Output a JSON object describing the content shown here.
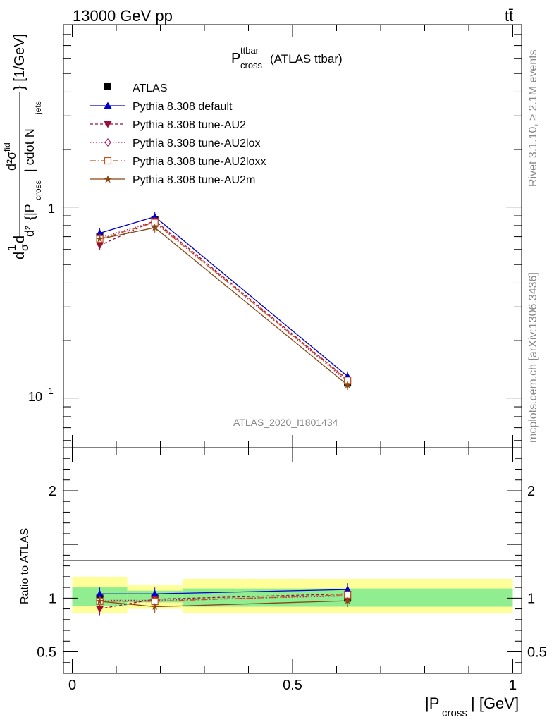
{
  "header": {
    "process_label": "13000 GeV pp",
    "final_state": "tt̄"
  },
  "side_labels": {
    "rivet": "Rivet 3.1.10, ≥ 2.1M events",
    "source": "mcplots.cern.ch [arXiv:1306.3436]"
  },
  "analysis_id": "ATLAS_2020_I1801434",
  "chart_data": [
    {
      "type": "line",
      "title_main": "P",
      "title_sup": "ttbar",
      "title_sub": "cross",
      "title_suffix": "(ATLAS ttbar)",
      "ylabel_parts": {
        "frac_num": "d",
        "one": "1",
        "sigma": "σ",
        "d": "d",
        "inner_num": "d²σ",
        "inner_num_sup": "fid",
        "inner_den_d2": "d²",
        "inner_den_open": "{|P",
        "inner_den_sub": "cross",
        "inner_den_close": "| cdot N",
        "inner_den_sub2": "jets",
        "tail": "} [1/GeV]"
      },
      "yscale": "log",
      "ylim": [
        0.055,
        9
      ],
      "xlim": [
        -0.02,
        1.02
      ],
      "ytick_labels": {
        "one": "1",
        "tenth_base": "10",
        "tenth_exp": "−1"
      },
      "legend_position": "top-left",
      "x": [
        0.0625,
        0.1875,
        0.625
      ],
      "series": [
        {
          "name": "ATLAS",
          "color": "#000000",
          "marker": "square",
          "style": "none",
          "values": [
            0.7,
            0.86,
            0.12
          ]
        },
        {
          "name": "Pythia 8.308 default",
          "color": "#0000cc",
          "marker": "triangle-up",
          "style": "solid",
          "values": [
            0.73,
            0.89,
            0.13
          ]
        },
        {
          "name": "Pythia 8.308 tune-AU2",
          "color": "#9c0e3a",
          "marker": "triangle-down",
          "style": "dashed",
          "values": [
            0.63,
            0.85,
            0.125
          ]
        },
        {
          "name": "Pythia 8.308 tune-AU2lox",
          "color": "#b01560",
          "marker": "diamond",
          "style": "dotted",
          "values": [
            0.69,
            0.84,
            0.122
          ]
        },
        {
          "name": "Pythia 8.308 tune-AU2loxx",
          "color": "#c8501e",
          "marker": "square-open",
          "style": "dashdot",
          "values": [
            0.68,
            0.83,
            0.124
          ]
        },
        {
          "name": "Pythia 8.308 tune-AU2m",
          "color": "#8b4513",
          "marker": "star",
          "style": "solid",
          "values": [
            0.68,
            0.78,
            0.117
          ]
        }
      ]
    },
    {
      "type": "line",
      "ylabel": "Ratio to ATLAS",
      "xlabel_main": "|P",
      "xlabel_sub": "cross",
      "xlabel_tail": "| [GeV]",
      "ylim": [
        0.3,
        2.4
      ],
      "xlim": [
        -0.02,
        1.02
      ],
      "yticks": [
        0.5,
        1,
        2
      ],
      "ytick_labels": [
        "0.5",
        "1",
        "2"
      ],
      "xticks": [
        0,
        0.5,
        1
      ],
      "xtick_labels": [
        "0",
        "0.5",
        "1"
      ],
      "bins": [
        {
          "lo": 0.0,
          "hi": 0.125,
          "inner": [
            0.93,
            1.1
          ],
          "outer": [
            0.86,
            1.2
          ]
        },
        {
          "lo": 0.125,
          "hi": 0.25,
          "inner": [
            0.96,
            1.07
          ],
          "outer": [
            0.9,
            1.12
          ]
        },
        {
          "lo": 0.25,
          "hi": 1.0,
          "inner": [
            0.92,
            1.09
          ],
          "outer": [
            0.86,
            1.18
          ]
        }
      ],
      "band_colors": {
        "inner": "#90ee90",
        "outer": "#ffff99"
      },
      "series": [
        {
          "name": "Pythia 8.308 default",
          "values": [
            1.04,
            1.04,
            1.08
          ]
        },
        {
          "name": "Pythia 8.308 tune-AU2",
          "values": [
            0.9,
            0.99,
            1.04
          ]
        },
        {
          "name": "Pythia 8.308 tune-AU2lox",
          "values": [
            0.98,
            0.98,
            1.02
          ]
        },
        {
          "name": "Pythia 8.308 tune-AU2loxx",
          "values": [
            0.97,
            0.97,
            1.03
          ]
        },
        {
          "name": "Pythia 8.308 tune-AU2m",
          "values": [
            0.97,
            0.92,
            0.975
          ]
        }
      ]
    }
  ]
}
